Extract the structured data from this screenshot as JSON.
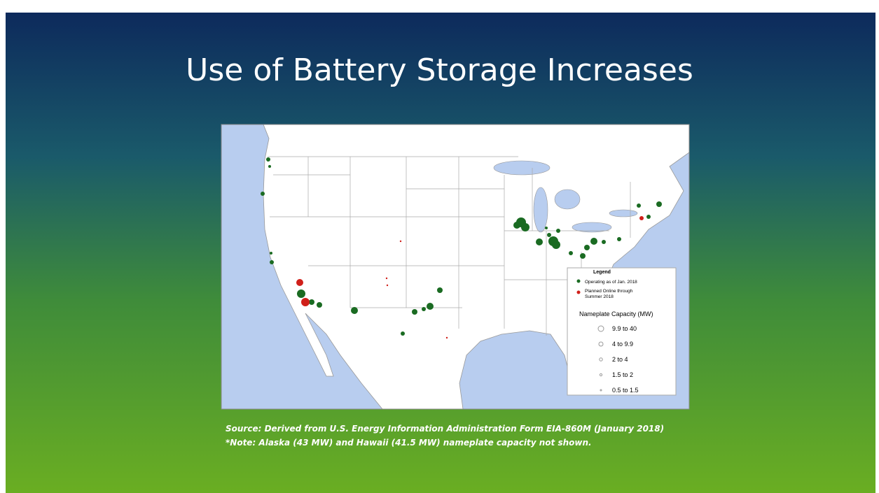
{
  "title": "Use of Battery Storage Increases",
  "legend": {
    "title": "Legend",
    "operating": "Operating as of Jan. 2018",
    "planned_line1": "Planned Online through",
    "planned_line2": "Summer 2018",
    "capacity_title": "Nameplate Capacity (MW)",
    "sizes": [
      "9.9 to 40",
      "4 to 9.9",
      "2 to 4",
      "1.5 to 2",
      "0.5 to 1.5"
    ]
  },
  "source": "Source: Derived from U.S. Energy Information Administration Form EIA-860M (January 2018)",
  "note": "*Note: Alaska (43 MW) and Hawaii (41.5 MW) nameplate capacity not shown."
}
